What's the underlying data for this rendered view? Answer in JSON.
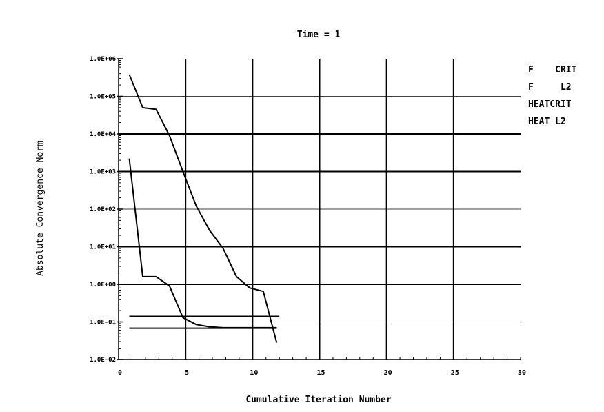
{
  "chart_data": {
    "type": "line",
    "title": "Time = 1",
    "xlabel": "Cumulative Iteration Number",
    "ylabel": "Absolute Convergence Norm",
    "x_scale": "linear",
    "y_scale": "log",
    "xlim": [
      0,
      30
    ],
    "ylim": [
      0.01,
      1000000
    ],
    "x_ticks": [
      0,
      5,
      10,
      15,
      20,
      25,
      30
    ],
    "x_tick_labels": [
      "0",
      "5",
      "10",
      "15",
      "20",
      "25",
      "30"
    ],
    "y_ticks": [
      0.01,
      0.1,
      1,
      10,
      100,
      1000,
      10000,
      100000,
      1000000
    ],
    "y_tick_labels": [
      "1.0E-02",
      "1.0E-01",
      "1.0E+00",
      "1.0E+01",
      "1.0E+02",
      "1.0E+03",
      "1.0E+04",
      "1.0E+05",
      "1.0E+06"
    ],
    "major_grid_y": [
      1,
      10,
      1000,
      10000
    ],
    "grid": true,
    "legend_position": "right",
    "legend": [
      "F    CRIT",
      "F     L2",
      "HEATCRIT",
      "HEAT L2"
    ],
    "series": [
      {
        "name": "F    CRIT",
        "x": [
          0.8,
          12
        ],
        "y": [
          0.14,
          0.14
        ],
        "color": "#000000"
      },
      {
        "name": "F     L2",
        "x": [
          0.8,
          1.8,
          2.8,
          3.8,
          4.8,
          5.8,
          6.8,
          7.8,
          8.8,
          9.8,
          10.8,
          11.8
        ],
        "y": [
          2200,
          1.6,
          1.6,
          0.9,
          0.13,
          0.085,
          0.074,
          0.07,
          0.07,
          0.07,
          0.07,
          0.07
        ],
        "color": "#000000"
      },
      {
        "name": "HEATCRIT",
        "x": [
          0.8,
          11.8
        ],
        "y": [
          0.068,
          0.068
        ],
        "color": "#000000"
      },
      {
        "name": "HEAT L2",
        "x": [
          0.8,
          1.8,
          2.8,
          3.8,
          4.8,
          5.8,
          6.8,
          7.8,
          8.8,
          9.8,
          10.8,
          11.8
        ],
        "y": [
          380000,
          50000,
          45000,
          9000,
          1000,
          120,
          27,
          9,
          1.6,
          0.8,
          0.65,
          0.028
        ],
        "color": "#000000"
      }
    ]
  }
}
